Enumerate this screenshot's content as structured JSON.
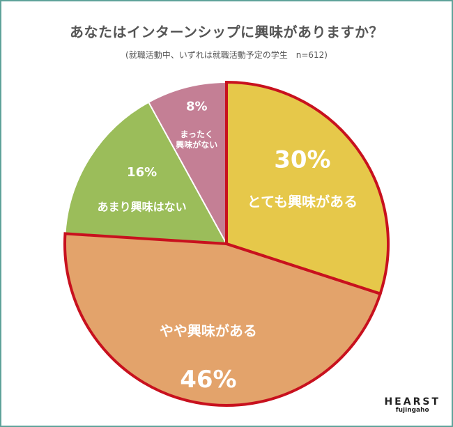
{
  "title": "あなたはインターンシップに興味がありますか？",
  "subtitle": "(就職活動中、いずれは就職活動予定の学生　n=612)",
  "brand": {
    "name": "HEARST",
    "sub": "fujingaho"
  },
  "chart_data": {
    "type": "pie",
    "title": "あなたはインターンシップに興味がありますか？",
    "subtitle": "(就職活動中、いずれは就職活動予定の学生　n=612)",
    "slices": [
      {
        "label": "とても興味がある",
        "value": 30,
        "value_label": "30%",
        "color": "#e6c84a",
        "highlighted": true
      },
      {
        "label": "やや興味がある",
        "value": 46,
        "value_label": "46%",
        "color": "#e3a36b",
        "highlighted": true
      },
      {
        "label": "あまり興味はない",
        "value": 16,
        "value_label": "16%",
        "color": "#9bbd5a",
        "highlighted": false
      },
      {
        "label": "まったく\n興味がない",
        "value": 8,
        "value_label": "8%",
        "color": "#c47f95",
        "highlighted": false
      }
    ],
    "highlight_color": "#c8111e",
    "start_angle_deg": 0,
    "direction": "clockwise"
  }
}
